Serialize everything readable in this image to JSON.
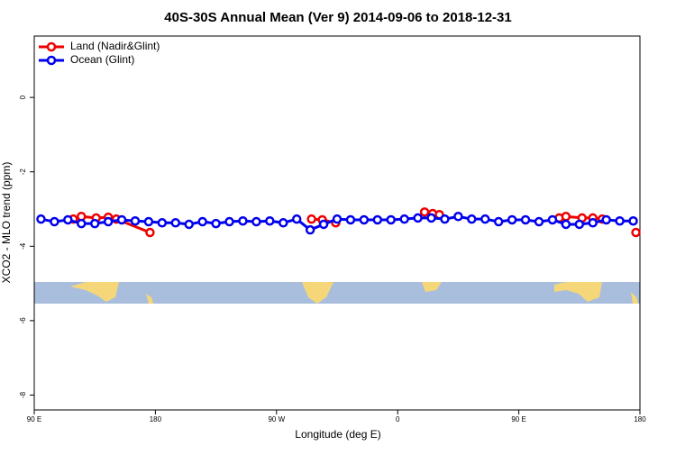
{
  "chart_data": {
    "type": "line",
    "title": "40S-30S Annual Mean (Ver 9)   2014-09-06 to 2018-12-31",
    "x_label": "Longitude (deg E)",
    "y_label": "XCO2 - MLO trend (ppm)",
    "xlim": [
      90,
      540
    ],
    "ylim": [
      -8.4,
      1.65
    ],
    "xticks": [
      {
        "value": 90,
        "label": "90 E"
      },
      180,
      {
        "value": 270,
        "label": "90 W"
      },
      {
        "value": 360,
        "label": "0"
      },
      {
        "value": 450,
        "label": "90 E"
      },
      {
        "value": 540,
        "label": "180"
      }
    ],
    "yticks": [
      0,
      -2,
      -4,
      -6,
      -8
    ],
    "legend": "top-left",
    "series": [
      {
        "name": "Land (Nadir&Glint)",
        "color": "#ee0000",
        "x": [
          119,
          125,
          136,
          145,
          151,
          176,
          185,
          296,
          304,
          314,
          325,
          380,
          386,
          391,
          400,
          480,
          485,
          497,
          505,
          512,
          525,
          537
        ],
        "values": [
          -3.27,
          -3.2,
          -3.24,
          -3.22,
          -3.27,
          -3.63,
          null,
          -3.27,
          -3.29,
          -3.37,
          null,
          -3.08,
          -3.12,
          -3.15,
          null,
          -3.24,
          -3.2,
          -3.24,
          -3.24,
          -3.27,
          null,
          -3.63
        ]
      },
      {
        "name": "Ocean (Glint)",
        "color": "#0000ee",
        "x": [
          95,
          105,
          115,
          125,
          135,
          145,
          155,
          165,
          175,
          185,
          195,
          205,
          215,
          225,
          235,
          245,
          255,
          265,
          275,
          285,
          295,
          305,
          315,
          325,
          335,
          345,
          355,
          365,
          375,
          385,
          395,
          405,
          415,
          425,
          435,
          445,
          455,
          465,
          475,
          485,
          495,
          505,
          515,
          525,
          535
        ],
        "values": [
          -3.27,
          -3.34,
          -3.29,
          -3.39,
          -3.39,
          -3.34,
          -3.29,
          -3.32,
          -3.34,
          -3.37,
          -3.37,
          -3.41,
          -3.34,
          -3.39,
          -3.34,
          -3.32,
          -3.34,
          -3.32,
          -3.37,
          -3.27,
          -3.56,
          -3.41,
          -3.27,
          -3.29,
          -3.29,
          -3.29,
          -3.29,
          -3.27,
          -3.24,
          -3.24,
          -3.27,
          -3.2,
          -3.27,
          -3.27,
          -3.34,
          -3.29,
          -3.29,
          -3.34,
          -3.29,
          -3.41,
          -3.41,
          -3.37,
          -3.29,
          -3.32,
          -3.32
        ]
      }
    ]
  }
}
